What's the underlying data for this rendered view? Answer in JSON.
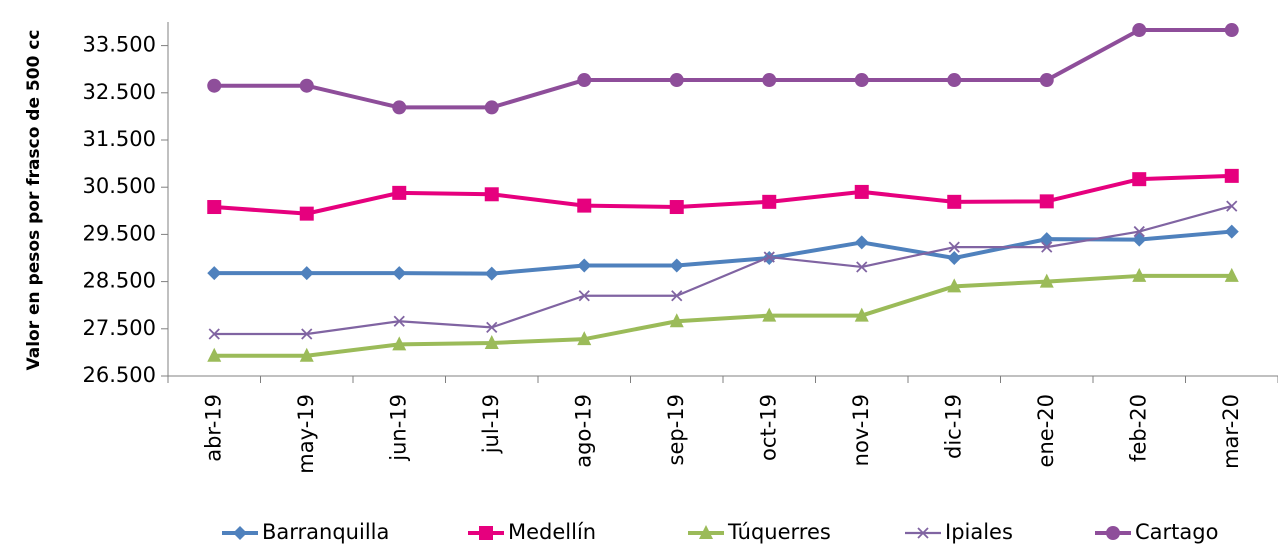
{
  "chart_data": {
    "type": "line",
    "title": "",
    "xlabel": "",
    "ylabel": "Valor en pesos por frasco de 500 cc",
    "categories": [
      "abr-19",
      "may-19",
      "jun-19",
      "jul-19",
      "ago-19",
      "sep-19",
      "oct-19",
      "nov-19",
      "dic-19",
      "ene-20",
      "feb-20",
      "mar-20"
    ],
    "ylim": [
      26500,
      34000
    ],
    "yticks": [
      26500,
      27500,
      28500,
      29500,
      30500,
      31500,
      32500,
      33500
    ],
    "ytick_labels": [
      "26.500",
      "27.500",
      "28.500",
      "29.500",
      "30.500",
      "31.500",
      "32.500",
      "33.500"
    ],
    "grid": false,
    "legend_position": "bottom",
    "series": [
      {
        "name": "Barranquilla",
        "color": "#4f81bd",
        "marker": "diamond",
        "values": [
          28680,
          28680,
          28680,
          28670,
          28840,
          28840,
          29000,
          29330,
          29000,
          29400,
          29390,
          29560
        ]
      },
      {
        "name": "Medellín",
        "color": "#e6007e",
        "marker": "square",
        "values": [
          30080,
          29940,
          30380,
          30350,
          30110,
          30080,
          30190,
          30400,
          30190,
          30200,
          30670,
          30740
        ]
      },
      {
        "name": "Túquerres",
        "color": "#9bbb59",
        "marker": "triangle",
        "values": [
          26930,
          26930,
          27170,
          27200,
          27280,
          27660,
          27780,
          27780,
          28400,
          28500,
          28620,
          28620
        ]
      },
      {
        "name": "Ipiales",
        "color": "#8064a2",
        "marker": "x",
        "values": [
          27390,
          27390,
          27660,
          27530,
          28200,
          28200,
          29020,
          28810,
          29230,
          29230,
          29560,
          30100
        ]
      },
      {
        "name": "Cartago",
        "color": "#8e4e9a",
        "marker": "circle",
        "values": [
          32650,
          32650,
          32190,
          32190,
          32770,
          32770,
          32770,
          32770,
          32770,
          32770,
          33830,
          33830
        ]
      }
    ]
  }
}
